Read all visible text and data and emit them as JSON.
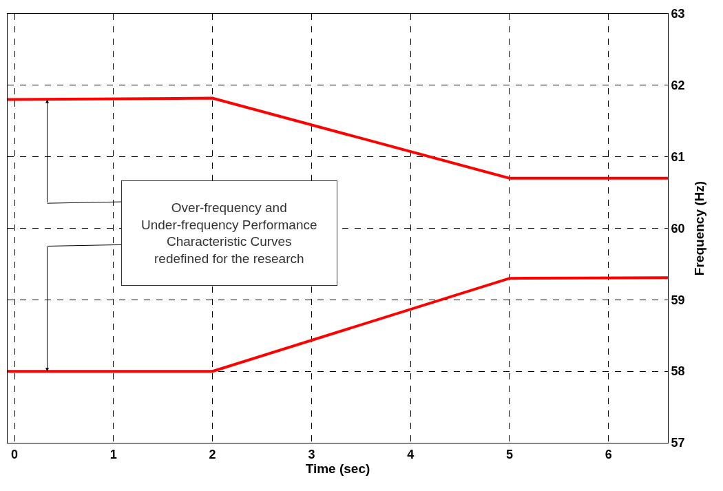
{
  "chart_data": {
    "type": "line",
    "xlabel": "Time (sec)",
    "ylabel": "Frequency (Hz)",
    "series": [
      {
        "color": "#ff0000",
        "x": [
          -0.07,
          2,
          5,
          6.6
        ],
        "values": [
          61.8,
          61.82,
          60.7,
          60.7
        ]
      },
      {
        "color": "#ff0000",
        "x": [
          -0.07,
          2,
          5,
          6.6
        ],
        "values": [
          58,
          58,
          59.3,
          59.31
        ]
      }
    ],
    "xlim": [
      -0.07,
      6.6
    ],
    "xticks": [
      0,
      1,
      2,
      3,
      4,
      5,
      6
    ],
    "ylim": [
      57,
      63
    ],
    "yticks": [
      57,
      58,
      59,
      60,
      61,
      62,
      63
    ],
    "grid": true,
    "marker": "none",
    "line_style": "solid",
    "annotations": [
      "Over-frequency and\nUnder-frequency Performance\nCharacteristic Curves\nredefined for the research"
    ]
  }
}
